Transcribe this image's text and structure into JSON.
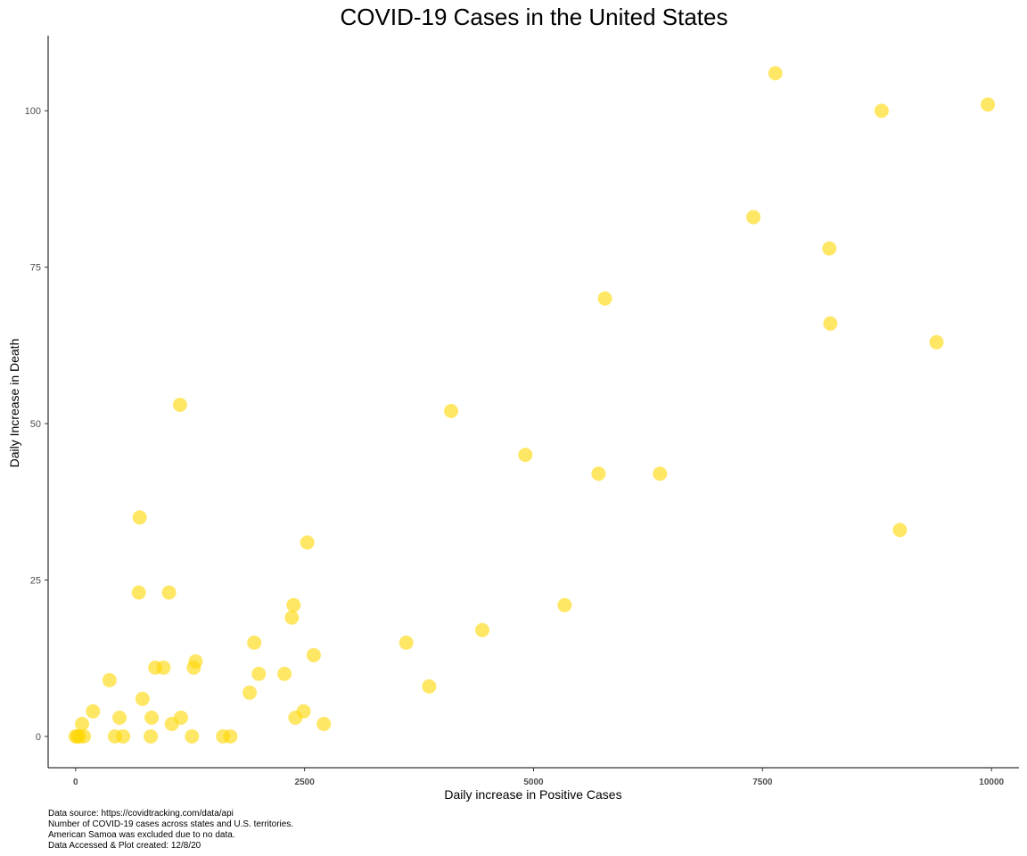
{
  "chart_data": {
    "type": "scatter",
    "title": "COVID-19 Cases in the United States",
    "xlabel": "Daily increase in Positive Cases",
    "ylabel": "Daily Increase in Death",
    "xlim": [
      -300,
      10300
    ],
    "ylim": [
      -5,
      112
    ],
    "xticks": [
      0,
      2500,
      5000,
      7500,
      10000
    ],
    "xtick_labels": [
      "0",
      "2500",
      "5000",
      "7500",
      "10000"
    ],
    "yticks": [
      0,
      25,
      50,
      75,
      100
    ],
    "ytick_labels": [
      "0",
      "25",
      "50",
      "75",
      "100"
    ],
    "grid": false,
    "legend": "none",
    "point_color": "#FFD700",
    "point_opacity": 0.6,
    "points": [
      {
        "x": 0,
        "y": 0
      },
      {
        "x": 20,
        "y": 0
      },
      {
        "x": 40,
        "y": 0
      },
      {
        "x": 70,
        "y": 2
      },
      {
        "x": 90,
        "y": 0
      },
      {
        "x": 190,
        "y": 4
      },
      {
        "x": 370,
        "y": 9
      },
      {
        "x": 430,
        "y": 0
      },
      {
        "x": 480,
        "y": 3
      },
      {
        "x": 520,
        "y": 0
      },
      {
        "x": 690,
        "y": 23
      },
      {
        "x": 700,
        "y": 35
      },
      {
        "x": 730,
        "y": 6
      },
      {
        "x": 820,
        "y": 0
      },
      {
        "x": 830,
        "y": 3
      },
      {
        "x": 870,
        "y": 11
      },
      {
        "x": 960,
        "y": 11
      },
      {
        "x": 1020,
        "y": 23
      },
      {
        "x": 1050,
        "y": 2
      },
      {
        "x": 1140,
        "y": 53
      },
      {
        "x": 1150,
        "y": 3
      },
      {
        "x": 1270,
        "y": 0
      },
      {
        "x": 1290,
        "y": 11
      },
      {
        "x": 1310,
        "y": 12
      },
      {
        "x": 1610,
        "y": 0
      },
      {
        "x": 1690,
        "y": 0
      },
      {
        "x": 1900,
        "y": 7
      },
      {
        "x": 1950,
        "y": 15
      },
      {
        "x": 2000,
        "y": 10
      },
      {
        "x": 2280,
        "y": 10
      },
      {
        "x": 2360,
        "y": 19
      },
      {
        "x": 2380,
        "y": 21
      },
      {
        "x": 2400,
        "y": 3
      },
      {
        "x": 2490,
        "y": 4
      },
      {
        "x": 2530,
        "y": 31
      },
      {
        "x": 2600,
        "y": 13
      },
      {
        "x": 2710,
        "y": 2
      },
      {
        "x": 3610,
        "y": 15
      },
      {
        "x": 3860,
        "y": 8
      },
      {
        "x": 4100,
        "y": 52
      },
      {
        "x": 4440,
        "y": 17
      },
      {
        "x": 4910,
        "y": 45
      },
      {
        "x": 5340,
        "y": 21
      },
      {
        "x": 5710,
        "y": 42
      },
      {
        "x": 5780,
        "y": 70
      },
      {
        "x": 6380,
        "y": 42
      },
      {
        "x": 7400,
        "y": 83
      },
      {
        "x": 7640,
        "y": 106
      },
      {
        "x": 8230,
        "y": 78
      },
      {
        "x": 8240,
        "y": 66
      },
      {
        "x": 8800,
        "y": 100
      },
      {
        "x": 9000,
        "y": 33
      },
      {
        "x": 9400,
        "y": 63
      },
      {
        "x": 9960,
        "y": 101
      }
    ]
  },
  "caption": [
    "Data source: https://covidtracking.com/data/api",
    "Number of COVID-19 cases across states and U.S. territories.",
    "American Samoa was excluded due to no data.",
    "Data Accessed & Plot created: 12/8/20"
  ]
}
